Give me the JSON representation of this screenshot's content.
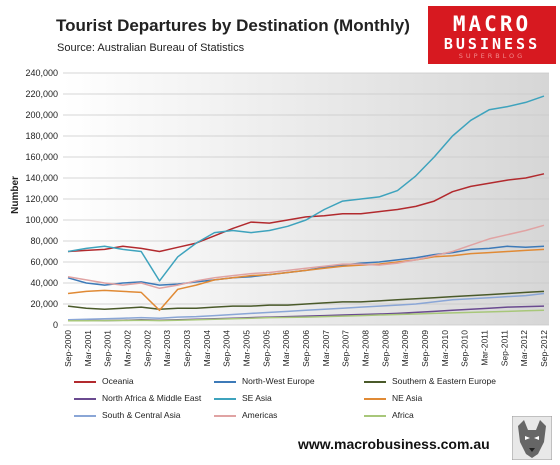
{
  "header": {
    "title": "Tourist Departures by Destination (Monthly)",
    "source": "Source: Australian Bureau of Statistics"
  },
  "logo": {
    "line1": "MACRO",
    "line2": "BUSINESS",
    "line3": "SUPERBLOG"
  },
  "footer": {
    "website": "www.macrobusiness.com.au"
  },
  "chart_data": {
    "type": "line",
    "title": "Tourist Departures by Destination (Monthly)",
    "ylabel": "Number",
    "xlabel": "",
    "ylim": [
      0,
      240000
    ],
    "yticks": [
      0,
      20000,
      40000,
      60000,
      80000,
      100000,
      120000,
      140000,
      160000,
      180000,
      200000,
      220000,
      240000
    ],
    "ytick_labels": [
      "0",
      "20,000",
      "40,000",
      "60,000",
      "80,000",
      "100,000",
      "120,000",
      "140,000",
      "160,000",
      "180,000",
      "200,000",
      "220,000",
      "240,000"
    ],
    "x_start": "Sep-2000",
    "x_end": "Sep-2012",
    "xtick_labels": [
      "Sep-2000",
      "Mar-2001",
      "Sep-2001",
      "Mar-2002",
      "Sep-2002",
      "Mar-2003",
      "Sep-2003",
      "Mar-2004",
      "Sep-2004",
      "Mar-2005",
      "Sep-2005",
      "Mar-2006",
      "Sep-2006",
      "Mar-2007",
      "Sep-2007",
      "Mar-2008",
      "Sep-2008",
      "Mar-2009",
      "Sep-2009",
      "Mar-2010",
      "Sep-2010",
      "Mar-2011",
      "Sep-2011",
      "Mar-2012",
      "Sep-2012"
    ],
    "grid": true,
    "legend_position": "bottom",
    "series": [
      {
        "name": "Oceania",
        "color": "#b22a2e",
        "values": [
          70000,
          71000,
          72000,
          75000,
          73000,
          70000,
          74000,
          78000,
          85000,
          92000,
          98000,
          97000,
          100000,
          103000,
          104000,
          106000,
          106000,
          108000,
          110000,
          113000,
          118000,
          127000,
          132000,
          135000,
          138000,
          140000,
          144000
        ]
      },
      {
        "name": "North-West Europe",
        "color": "#3d7ab8",
        "values": [
          45000,
          40000,
          38000,
          40000,
          41000,
          38000,
          39000,
          41000,
          43000,
          45000,
          46000,
          48000,
          50000,
          52000,
          55000,
          57000,
          59000,
          60000,
          62000,
          64000,
          67000,
          69000,
          72000,
          73000,
          75000,
          74000,
          75000
        ]
      },
      {
        "name": "Southern & Eastern Europe",
        "color": "#4a5a2a",
        "values": [
          18000,
          16000,
          15000,
          16000,
          17000,
          15000,
          16000,
          16000,
          17000,
          18000,
          18000,
          19000,
          19000,
          20000,
          21000,
          22000,
          22000,
          23000,
          24000,
          25000,
          26000,
          27000,
          28000,
          29000,
          30000,
          31000,
          32000
        ]
      },
      {
        "name": "North Africa & Middle East",
        "color": "#6a4a90",
        "values": [
          5000,
          4500,
          4200,
          4500,
          5000,
          4500,
          5000,
          5500,
          6000,
          6500,
          7000,
          7500,
          8000,
          8500,
          9000,
          9500,
          10000,
          10500,
          11000,
          12000,
          13000,
          14000,
          15000,
          16000,
          17000,
          17500,
          18000
        ]
      },
      {
        "name": "SE Asia",
        "color": "#3ea3bd",
        "values": [
          70000,
          73000,
          75000,
          72000,
          70000,
          42000,
          65000,
          78000,
          88000,
          90000,
          88000,
          90000,
          94000,
          100000,
          110000,
          118000,
          120000,
          122000,
          128000,
          142000,
          160000,
          180000,
          195000,
          205000,
          208000,
          212000,
          218000
        ]
      },
      {
        "name": "NE Asia",
        "color": "#e08a35",
        "values": [
          30000,
          32000,
          33000,
          32000,
          31000,
          14000,
          34000,
          38000,
          43000,
          45000,
          47000,
          48000,
          50000,
          52000,
          54000,
          56000,
          57000,
          58000,
          60000,
          62000,
          65000,
          66000,
          68000,
          69000,
          70000,
          71000,
          72000
        ]
      },
      {
        "name": "South & Central Asia",
        "color": "#8aa6d6",
        "values": [
          5000,
          5500,
          6000,
          6500,
          7000,
          6500,
          7500,
          8000,
          9000,
          10000,
          11000,
          12000,
          13000,
          14000,
          15000,
          16000,
          17000,
          18000,
          19000,
          20000,
          22000,
          24000,
          25000,
          26000,
          27000,
          28000,
          30000
        ]
      },
      {
        "name": "Americas",
        "color": "#e0a3a3",
        "values": [
          46000,
          43000,
          40000,
          38000,
          40000,
          35000,
          38000,
          42000,
          45000,
          47000,
          49000,
          50000,
          52000,
          54000,
          56000,
          58000,
          58000,
          57000,
          59000,
          62000,
          66000,
          70000,
          76000,
          82000,
          86000,
          90000,
          95000
        ]
      },
      {
        "name": "Africa",
        "color": "#a8c77a",
        "values": [
          4000,
          4000,
          4200,
          4300,
          4500,
          4200,
          4600,
          5000,
          5500,
          6000,
          6500,
          7000,
          7200,
          7500,
          8000,
          8500,
          9000,
          9500,
          10000,
          10500,
          11000,
          11500,
          12000,
          12500,
          13000,
          13500,
          14000
        ]
      }
    ]
  }
}
